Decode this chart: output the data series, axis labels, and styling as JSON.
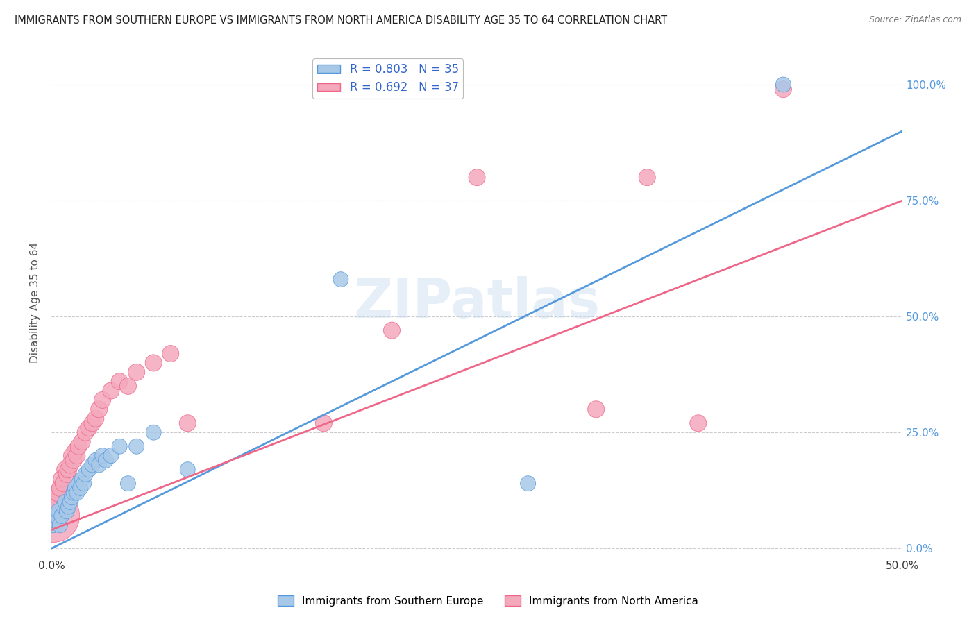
{
  "title": "IMMIGRANTS FROM SOUTHERN EUROPE VS IMMIGRANTS FROM NORTH AMERICA DISABILITY AGE 35 TO 64 CORRELATION CHART",
  "source": "Source: ZipAtlas.com",
  "ylabel": "Disability Age 35 to 64",
  "xlim": [
    0.0,
    0.5
  ],
  "ylim": [
    -0.02,
    1.08
  ],
  "y_ticks_right": [
    0.0,
    0.25,
    0.5,
    0.75,
    1.0
  ],
  "y_tick_labels_right": [
    "0.0%",
    "25.0%",
    "50.0%",
    "75.0%",
    "100.0%"
  ],
  "color_blue": "#a8c8e8",
  "color_pink": "#f4a8bc",
  "line_blue": "#5599dd",
  "line_pink": "#ee6688",
  "legend_text_color": "#3366cc",
  "R_blue": 0.803,
  "N_blue": 35,
  "R_pink": 0.692,
  "N_pink": 37,
  "watermark": "ZIPatlas",
  "blue_scatter_x": [
    0.001,
    0.002,
    0.003,
    0.004,
    0.005,
    0.006,
    0.007,
    0.008,
    0.009,
    0.01,
    0.011,
    0.012,
    0.013,
    0.014,
    0.015,
    0.016,
    0.017,
    0.018,
    0.019,
    0.02,
    0.022,
    0.024,
    0.026,
    0.028,
    0.03,
    0.032,
    0.035,
    0.04,
    0.045,
    0.05,
    0.06,
    0.08,
    0.17,
    0.28,
    0.43
  ],
  "blue_scatter_y": [
    0.05,
    0.06,
    0.07,
    0.08,
    0.05,
    0.07,
    0.09,
    0.1,
    0.08,
    0.09,
    0.1,
    0.11,
    0.12,
    0.13,
    0.12,
    0.14,
    0.13,
    0.15,
    0.14,
    0.16,
    0.17,
    0.18,
    0.19,
    0.18,
    0.2,
    0.19,
    0.2,
    0.22,
    0.14,
    0.22,
    0.25,
    0.17,
    0.58,
    0.14,
    1.0
  ],
  "blue_scatter_size": [
    25,
    25,
    25,
    25,
    25,
    25,
    25,
    25,
    25,
    25,
    25,
    25,
    25,
    25,
    25,
    25,
    25,
    25,
    25,
    25,
    25,
    25,
    25,
    25,
    25,
    25,
    25,
    25,
    25,
    25,
    25,
    25,
    25,
    25,
    25
  ],
  "pink_scatter_x": [
    0.001,
    0.002,
    0.003,
    0.004,
    0.005,
    0.006,
    0.007,
    0.008,
    0.009,
    0.01,
    0.011,
    0.012,
    0.013,
    0.014,
    0.015,
    0.016,
    0.018,
    0.02,
    0.022,
    0.024,
    0.026,
    0.028,
    0.03,
    0.035,
    0.04,
    0.045,
    0.05,
    0.06,
    0.07,
    0.08,
    0.16,
    0.2,
    0.25,
    0.32,
    0.35,
    0.38,
    0.43
  ],
  "pink_scatter_y": [
    0.07,
    0.09,
    0.1,
    0.12,
    0.13,
    0.15,
    0.14,
    0.17,
    0.16,
    0.17,
    0.18,
    0.2,
    0.19,
    0.21,
    0.2,
    0.22,
    0.23,
    0.25,
    0.26,
    0.27,
    0.28,
    0.3,
    0.32,
    0.34,
    0.36,
    0.35,
    0.38,
    0.4,
    0.42,
    0.27,
    0.27,
    0.47,
    0.8,
    0.3,
    0.8,
    0.27,
    0.99
  ],
  "pink_scatter_size": [
    300,
    50,
    40,
    35,
    30,
    30,
    30,
    30,
    30,
    30,
    30,
    30,
    30,
    30,
    30,
    30,
    30,
    30,
    30,
    30,
    30,
    30,
    30,
    30,
    30,
    30,
    30,
    30,
    30,
    30,
    30,
    30,
    30,
    30,
    30,
    30,
    30
  ],
  "blue_line_x": [
    0.0,
    0.5
  ],
  "blue_line_y": [
    0.0,
    0.9
  ],
  "pink_line_x": [
    0.0,
    0.5
  ],
  "pink_line_y": [
    0.04,
    0.75
  ]
}
